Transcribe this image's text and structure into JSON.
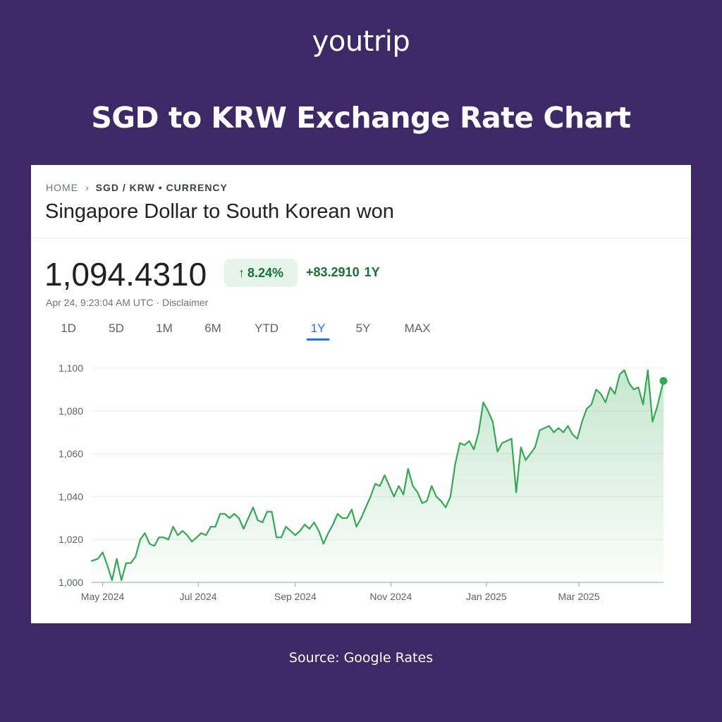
{
  "brand": {
    "logo_text": "youtrip"
  },
  "headline": "SGD to KRW Exchange Rate Chart",
  "card": {
    "breadcrumb": {
      "home": "HOME",
      "separator": "›",
      "current": "SGD / KRW • CURRENCY"
    },
    "pair_title": "Singapore Dollar to South Korean won",
    "price": "1,094.4310",
    "change_percent": "8.24%",
    "change_arrow": "↑",
    "change_absolute": "+83.2910",
    "change_period": "1Y",
    "timestamp": "Apr 24, 9:23:04 AM UTC · Disclaimer",
    "tabs": [
      {
        "label": "1D",
        "active": false
      },
      {
        "label": "5D",
        "active": false
      },
      {
        "label": "1M",
        "active": false
      },
      {
        "label": "6M",
        "active": false
      },
      {
        "label": "YTD",
        "active": false
      },
      {
        "label": "1Y",
        "active": true
      },
      {
        "label": "5Y",
        "active": false
      },
      {
        "label": "MAX",
        "active": false
      }
    ]
  },
  "source": "Source: Google Rates",
  "colors": {
    "background": "#3d2966",
    "line": "#34a853",
    "positive": "#137333",
    "active_tab": "#1a73e8"
  },
  "chart_data": {
    "type": "area",
    "x_tick_labels": [
      "May 2024",
      "Jul 2024",
      "Sep 2024",
      "Nov 2024",
      "Jan 2025",
      "Mar 2025"
    ],
    "x_ticks": [
      "2024-05-01",
      "2024-07-01",
      "2024-09-01",
      "2024-11-01",
      "2025-01-01",
      "2025-03-01"
    ],
    "x_range": [
      "2024-04-24",
      "2025-04-24"
    ],
    "y_ticks": [
      1000,
      1020,
      1040,
      1060,
      1080,
      1100
    ],
    "y_tick_labels": [
      "1,000",
      "1,020",
      "1,040",
      "1,060",
      "1,080",
      "1,100"
    ],
    "ylim": [
      1000,
      1100
    ],
    "grid": true,
    "series": [
      {
        "x": [
          "2024-04-24",
          "2024-04-28",
          "2024-05-01",
          "2024-05-04",
          "2024-05-07",
          "2024-05-10",
          "2024-05-13",
          "2024-05-16",
          "2024-05-19",
          "2024-05-22",
          "2024-05-25",
          "2024-05-28",
          "2024-05-31",
          "2024-06-03",
          "2024-06-06",
          "2024-06-09",
          "2024-06-12",
          "2024-06-15",
          "2024-06-18",
          "2024-06-21",
          "2024-06-24",
          "2024-06-27",
          "2024-06-30",
          "2024-07-03",
          "2024-07-06",
          "2024-07-09",
          "2024-07-12",
          "2024-07-15",
          "2024-07-18",
          "2024-07-21",
          "2024-07-24",
          "2024-07-27",
          "2024-07-30",
          "2024-08-02",
          "2024-08-05",
          "2024-08-08",
          "2024-08-11",
          "2024-08-14",
          "2024-08-17",
          "2024-08-20",
          "2024-08-23",
          "2024-08-26",
          "2024-08-29",
          "2024-09-01",
          "2024-09-04",
          "2024-09-07",
          "2024-09-10",
          "2024-09-13",
          "2024-09-16",
          "2024-09-19",
          "2024-09-22",
          "2024-09-25",
          "2024-09-28",
          "2024-10-01",
          "2024-10-04",
          "2024-10-07",
          "2024-10-10",
          "2024-10-13",
          "2024-10-16",
          "2024-10-19",
          "2024-10-22",
          "2024-10-25",
          "2024-10-28",
          "2024-10-31",
          "2024-11-03",
          "2024-11-06",
          "2024-11-09",
          "2024-11-12",
          "2024-11-15",
          "2024-11-18",
          "2024-11-21",
          "2024-11-24",
          "2024-11-27",
          "2024-11-30",
          "2024-12-03",
          "2024-12-06",
          "2024-12-09",
          "2024-12-12",
          "2024-12-15",
          "2024-12-18",
          "2024-12-21",
          "2024-12-24",
          "2024-12-27",
          "2024-12-30",
          "2025-01-02",
          "2025-01-05",
          "2025-01-08",
          "2025-01-11",
          "2025-01-14",
          "2025-01-17",
          "2025-01-20",
          "2025-01-23",
          "2025-01-26",
          "2025-01-29",
          "2025-02-01",
          "2025-02-04",
          "2025-02-07",
          "2025-02-10",
          "2025-02-13",
          "2025-02-16",
          "2025-02-19",
          "2025-02-22",
          "2025-02-25",
          "2025-02-28",
          "2025-03-03",
          "2025-03-06",
          "2025-03-09",
          "2025-03-12",
          "2025-03-15",
          "2025-03-18",
          "2025-03-21",
          "2025-03-24",
          "2025-03-27",
          "2025-03-30",
          "2025-04-02",
          "2025-04-05",
          "2025-04-08",
          "2025-04-11",
          "2025-04-14",
          "2025-04-17",
          "2025-04-20",
          "2025-04-24"
        ],
        "values": [
          1010,
          1011,
          1014,
          1008,
          1001,
          1011,
          1001,
          1009,
          1009,
          1012,
          1020,
          1023,
          1018,
          1017,
          1021,
          1021,
          1020,
          1026,
          1022,
          1024,
          1022,
          1019,
          1021,
          1023,
          1022,
          1026,
          1026,
          1032,
          1032,
          1030,
          1032,
          1030,
          1025,
          1030,
          1035,
          1029,
          1028,
          1033,
          1033,
          1021,
          1021,
          1026,
          1024,
          1022,
          1024,
          1027,
          1025,
          1028,
          1024,
          1018,
          1023,
          1027,
          1032,
          1030,
          1030,
          1034,
          1026,
          1030,
          1035,
          1040,
          1046,
          1045,
          1050,
          1045,
          1040,
          1045,
          1041,
          1053,
          1045,
          1042,
          1037,
          1038,
          1045,
          1040,
          1038,
          1035,
          1040,
          1055,
          1065,
          1064,
          1066,
          1062,
          1070,
          1084,
          1080,
          1075,
          1061,
          1065,
          1066,
          1067,
          1042,
          1063,
          1057,
          1060,
          1063,
          1071,
          1072,
          1073,
          1070,
          1072,
          1070,
          1073,
          1069,
          1067,
          1075,
          1081,
          1083,
          1090,
          1088,
          1084,
          1091,
          1088,
          1097,
          1099,
          1093,
          1090,
          1091,
          1083,
          1099,
          1075,
          1082,
          1094
        ]
      }
    ]
  }
}
